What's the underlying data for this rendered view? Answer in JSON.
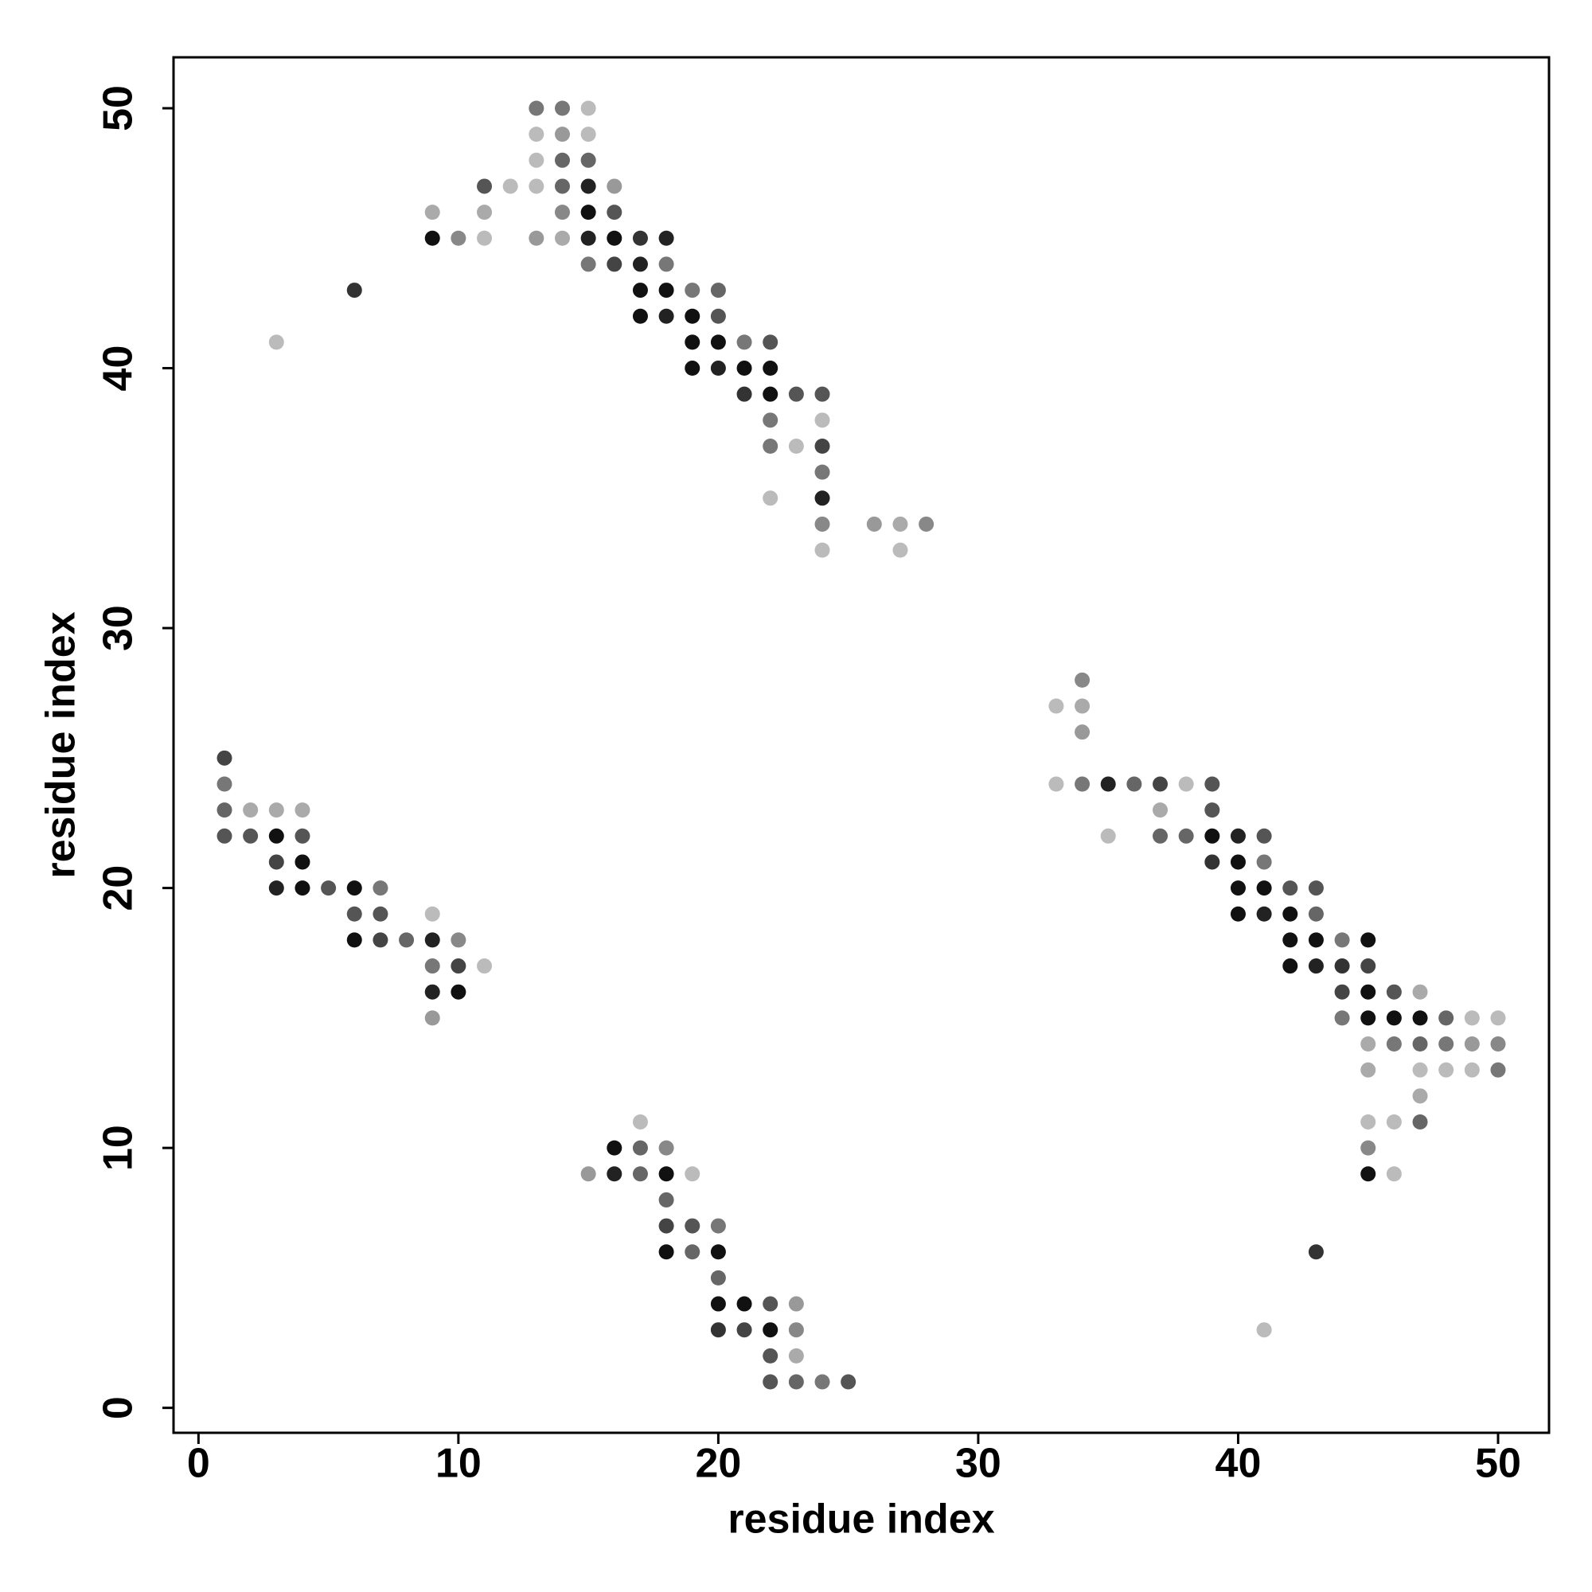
{
  "chart_data": {
    "type": "scatter",
    "xlabel": "residue index",
    "ylabel": "residue index",
    "xlim": [
      -0.96,
      51.96
    ],
    "ylim": [
      -0.96,
      51.96
    ],
    "xticks": [
      0,
      10,
      20,
      30,
      40,
      50
    ],
    "yticks": [
      0,
      10,
      20,
      30,
      40,
      50
    ],
    "grid": false,
    "series": [
      {
        "x": [
          13,
          13,
          13,
          13,
          13,
          14,
          14,
          14,
          14,
          14,
          14,
          15,
          15,
          15,
          15,
          15,
          15,
          15,
          16,
          16,
          16,
          16,
          9,
          9,
          10,
          11,
          11,
          11,
          12,
          6,
          3,
          17,
          17,
          17,
          17,
          18,
          18,
          18,
          18,
          19,
          19,
          19,
          19,
          20,
          20,
          20,
          20,
          21,
          21,
          21,
          22,
          22,
          22,
          22,
          22,
          22,
          23,
          23,
          24,
          24,
          24,
          24,
          24,
          24,
          24,
          26,
          27,
          27,
          28,
          1,
          1,
          1,
          1,
          2,
          2,
          3,
          3,
          3,
          3,
          4,
          4,
          4,
          4,
          5,
          6,
          6,
          6,
          7,
          7,
          7,
          8,
          9,
          9,
          9,
          9,
          9,
          10,
          10,
          10,
          11,
          15,
          16,
          16,
          17,
          17,
          17,
          18,
          18,
          18,
          18,
          18,
          19,
          19,
          19,
          20,
          20,
          20,
          20,
          20,
          21,
          21,
          22,
          22,
          22,
          22,
          23,
          23,
          23,
          23,
          24,
          25,
          33,
          33,
          34,
          34,
          34,
          34,
          35,
          35,
          36,
          37,
          37,
          37,
          38,
          38,
          39,
          39,
          39,
          39,
          40,
          40,
          40,
          40,
          41,
          41,
          41,
          41,
          41,
          42,
          42,
          42,
          42,
          43,
          43,
          43,
          43,
          43,
          44,
          44,
          44,
          44,
          45,
          45,
          45,
          45,
          45,
          45,
          45,
          45,
          45,
          46,
          46,
          46,
          46,
          46,
          47,
          47,
          47,
          47,
          47,
          47,
          48,
          48,
          48,
          49,
          49,
          49,
          50,
          50,
          50
        ],
        "values": [
          50,
          49,
          48,
          47,
          45,
          50,
          49,
          48,
          47,
          46,
          45,
          50,
          49,
          48,
          47,
          46,
          45,
          44,
          47,
          46,
          45,
          44,
          46,
          45,
          45,
          47,
          46,
          45,
          47,
          43,
          41,
          45,
          44,
          43,
          42,
          45,
          44,
          43,
          42,
          43,
          42,
          41,
          40,
          43,
          42,
          41,
          40,
          41,
          40,
          39,
          41,
          40,
          39,
          38,
          37,
          35,
          39,
          37,
          39,
          38,
          37,
          36,
          35,
          34,
          33,
          34,
          34,
          33,
          34,
          25,
          24,
          23,
          22,
          23,
          22,
          23,
          22,
          21,
          20,
          23,
          22,
          21,
          20,
          20,
          20,
          19,
          18,
          20,
          19,
          18,
          18,
          19,
          18,
          17,
          16,
          15,
          18,
          17,
          16,
          17,
          9,
          10,
          9,
          11,
          10,
          9,
          10,
          9,
          8,
          7,
          6,
          9,
          7,
          6,
          7,
          6,
          5,
          4,
          3,
          4,
          3,
          4,
          3,
          2,
          1,
          4,
          3,
          2,
          1,
          1,
          1,
          27,
          24,
          28,
          27,
          26,
          24,
          24,
          22,
          24,
          24,
          23,
          22,
          24,
          22,
          24,
          23,
          22,
          21,
          22,
          21,
          20,
          19,
          22,
          21,
          20,
          19,
          3,
          20,
          19,
          18,
          17,
          20,
          19,
          18,
          17,
          6,
          18,
          17,
          16,
          15,
          18,
          17,
          16,
          15,
          14,
          13,
          11,
          10,
          9,
          16,
          15,
          14,
          11,
          9,
          16,
          15,
          14,
          13,
          12,
          11,
          15,
          14,
          13,
          15,
          14,
          13,
          15,
          14,
          13
        ],
        "colors": [
          "#777",
          "#bbb",
          "#bbb",
          "#bbb",
          "#999",
          "#777",
          "#999",
          "#666",
          "#666",
          "#888",
          "#aaa",
          "#bbb",
          "#bbb",
          "#666",
          "#222",
          "#111",
          "#222",
          "#777",
          "#999",
          "#555",
          "#111",
          "#444",
          "#aaa",
          "#111",
          "#888",
          "#555",
          "#aaa",
          "#bbb",
          "#bbb",
          "#333",
          "#bbb",
          "#333",
          "#222",
          "#111",
          "#111",
          "#222",
          "#777",
          "#111",
          "#222",
          "#777",
          "#111",
          "#111",
          "#111",
          "#666",
          "#555",
          "#111",
          "#222",
          "#777",
          "#111",
          "#333",
          "#555",
          "#111",
          "#111",
          "#777",
          "#777",
          "#bbb",
          "#555",
          "#bbb",
          "#555",
          "#bbb",
          "#444",
          "#777",
          "#222",
          "#888",
          "#bbb",
          "#999",
          "#aaa",
          "#bbb",
          "#888",
          "#444",
          "#777",
          "#666",
          "#555",
          "#aaa",
          "#555",
          "#aaa",
          "#111",
          "#444",
          "#222",
          "#aaa",
          "#555",
          "#111",
          "#111",
          "#555",
          "#111",
          "#555",
          "#111",
          "#777",
          "#555",
          "#444",
          "#666",
          "#bbb",
          "#222",
          "#777",
          "#222",
          "#999",
          "#888",
          "#444",
          "#111",
          "#bbb",
          "#999",
          "#111",
          "#222",
          "#bbb",
          "#666",
          "#666",
          "#888",
          "#111",
          "#666",
          "#444",
          "#111",
          "#bbb",
          "#555",
          "#666",
          "#777",
          "#111",
          "#666",
          "#111",
          "#333",
          "#111",
          "#444",
          "#555",
          "#111",
          "#555",
          "#555",
          "#999",
          "#888",
          "#aaa",
          "#666",
          "#777",
          "#555",
          "#bbb",
          "#bbb",
          "#888",
          "#aaa",
          "#999",
          "#777",
          "#222",
          "#bbb",
          "#666",
          "#444",
          "#aaa",
          "#666",
          "#bbb",
          "#666",
          "#555",
          "#555",
          "#111",
          "#333",
          "#222",
          "#111",
          "#111",
          "#111",
          "#555",
          "#777",
          "#111",
          "#222",
          "#bbb",
          "#555",
          "#111",
          "#111",
          "#111",
          "#555",
          "#666",
          "#111",
          "#222",
          "#333",
          "#777",
          "#333",
          "#444",
          "#777",
          "#111",
          "#444",
          "#111",
          "#111",
          "#aaa",
          "#aaa",
          "#bbb",
          "#888",
          "#111",
          "#555",
          "#111",
          "#777",
          "#bbb",
          "#bbb",
          "#aaa",
          "#111",
          "#666",
          "#bbb",
          "#aaa",
          "#666",
          "#666",
          "#777",
          "#bbb",
          "#bbb",
          "#999",
          "#bbb",
          "#bbb",
          "#888",
          "#777"
        ]
      }
    ]
  }
}
